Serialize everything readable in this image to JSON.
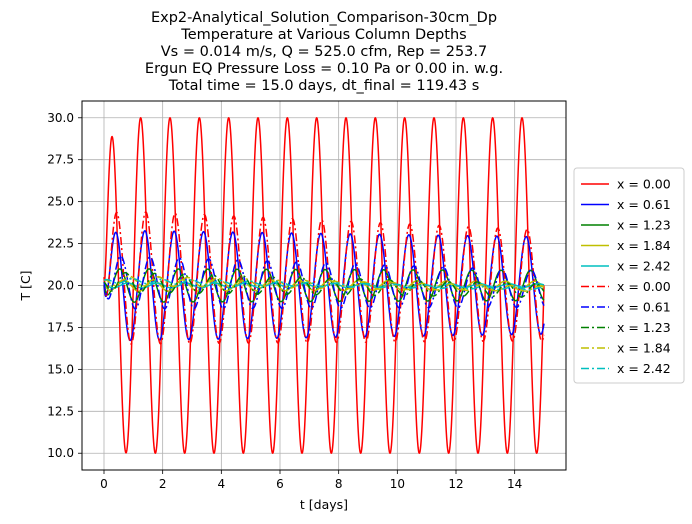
{
  "chart_data": {
    "type": "line",
    "title_lines": [
      "Exp2-Analytical_Solution_Comparison-30cm_Dp",
      "Temperature at Various Column Depths",
      "Vs = 0.014 m/s, Q = 525.0 cfm, Rep = 253.7",
      "Ergun EQ Pressure Loss = 0.10 Pa or 0.00 in. w.g.",
      "Total time = 15.0 days, dt_final = 119.43 s"
    ],
    "xlabel": "t [days]",
    "ylabel": "T [C]",
    "xlim": [
      -0.75,
      15.75
    ],
    "ylim": [
      9.0,
      31.0
    ],
    "xticks": [
      0,
      2,
      4,
      6,
      8,
      10,
      12,
      14
    ],
    "yticks": [
      10.0,
      12.5,
      15.0,
      17.5,
      20.0,
      22.5,
      25.0,
      27.5,
      30.0
    ],
    "grid": true,
    "legend_position": "center-right-outside",
    "period_days": 1.0,
    "t_range": [
      0,
      15
    ],
    "series": [
      {
        "name": "x = 0.00",
        "color": "#ff0000",
        "style": "solid",
        "mean": 20.0,
        "amp_start": 10.0,
        "amp_end": 10.0,
        "phase": 0.0,
        "drift": 0.0
      },
      {
        "name": "x = 0.61",
        "color": "#0000ff",
        "style": "solid",
        "mean": 20.0,
        "amp_start": 3.3,
        "amp_end": 2.9,
        "phase": 0.9,
        "drift": 0.0
      },
      {
        "name": "x = 1.23",
        "color": "#008000",
        "style": "solid",
        "mean": 20.0,
        "amp_start": 1.0,
        "amp_end": 0.9,
        "phase": 1.8,
        "drift": 0.0
      },
      {
        "name": "x = 1.84",
        "color": "#bfbf00",
        "style": "solid",
        "mean": 20.0,
        "amp_start": 0.35,
        "amp_end": 0.25,
        "phase": 2.7,
        "drift": 0.0
      },
      {
        "name": "x = 2.42",
        "color": "#00bfbf",
        "style": "solid",
        "mean": 20.0,
        "amp_start": 0.15,
        "amp_end": 0.1,
        "phase": 3.5,
        "drift": 0.0
      },
      {
        "name": "x = 0.00",
        "color": "#ff0000",
        "style": "dashdot",
        "mean": 20.5,
        "amp_start": 4.0,
        "amp_end": 3.3,
        "phase": 1.1,
        "drift": -0.5
      },
      {
        "name": "x = 0.61",
        "color": "#0000ff",
        "style": "dashdot",
        "mean": 20.2,
        "amp_start": 1.6,
        "amp_end": 1.1,
        "phase": 2.0,
        "drift": -0.4
      },
      {
        "name": "x = 1.23",
        "color": "#008000",
        "style": "dashdot",
        "mean": 20.2,
        "amp_start": 0.6,
        "amp_end": 0.4,
        "phase": 3.0,
        "drift": -0.5
      },
      {
        "name": "x = 1.84",
        "color": "#bfbf00",
        "style": "dashdot",
        "mean": 20.3,
        "amp_start": 0.3,
        "amp_end": 0.15,
        "phase": 3.8,
        "drift": -0.5
      },
      {
        "name": "x = 2.42",
        "color": "#00bfbf",
        "style": "dashdot",
        "mean": 20.3,
        "amp_start": 0.15,
        "amp_end": 0.08,
        "phase": 4.5,
        "drift": -0.5
      }
    ]
  }
}
